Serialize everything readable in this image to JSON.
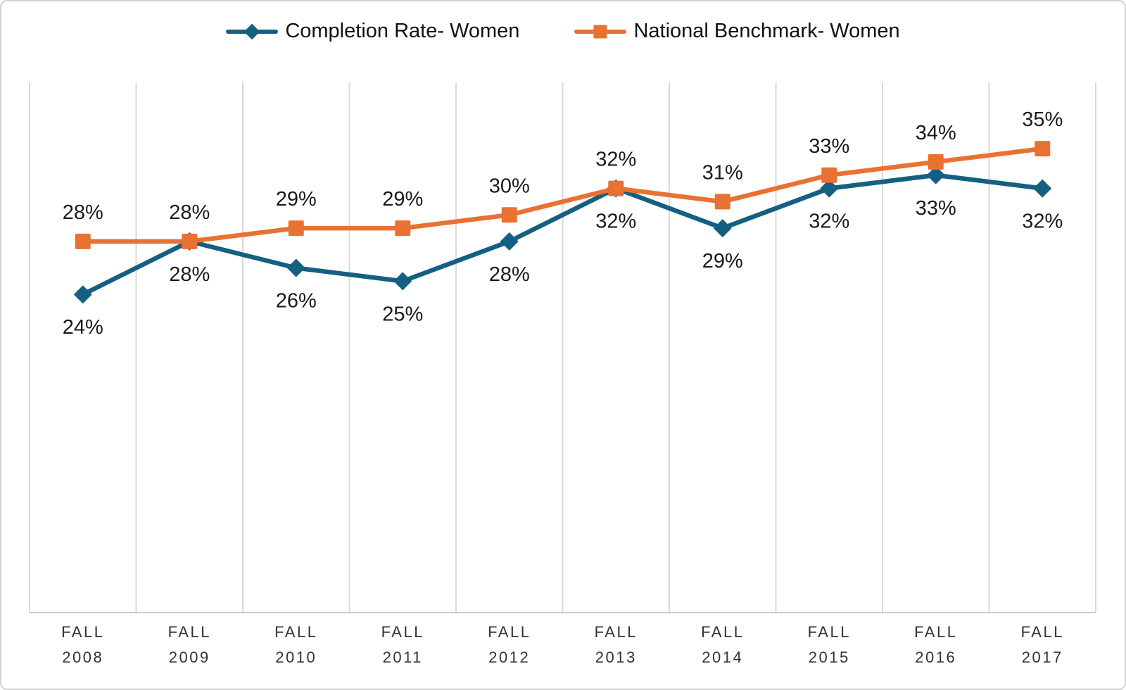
{
  "chart_data": {
    "type": "line",
    "title": "",
    "categories": [
      "FALL 2008",
      "FALL 2009",
      "FALL 2010",
      "FALL 2011",
      "FALL 2012",
      "FALL 2013",
      "FALL 2014",
      "FALL 2015",
      "FALL 2016",
      "FALL 2017"
    ],
    "series": [
      {
        "name": "Completion Rate- Women",
        "color": "#156082",
        "marker": "diamond",
        "label_position": "below",
        "values": [
          24,
          28,
          26,
          25,
          28,
          32,
          29,
          32,
          33,
          32
        ],
        "labels": [
          "24%",
          "28%",
          "26%",
          "25%",
          "28%",
          "32%",
          "29%",
          "32%",
          "33%",
          "32%"
        ]
      },
      {
        "name": "National Benchmark- Women",
        "color": "#E97132",
        "marker": "square",
        "label_position": "above",
        "values": [
          28,
          28,
          29,
          29,
          30,
          32,
          31,
          33,
          34,
          35
        ],
        "labels": [
          "28%",
          "28%",
          "29%",
          "29%",
          "30%",
          "32%",
          "31%",
          "33%",
          "34%",
          "35%"
        ]
      }
    ],
    "ylim": [
      0,
      40
    ],
    "value_suffix": "%",
    "grid": "vertical-only",
    "legend_position": "top",
    "data_labels": true,
    "gridline_color": "#D9D9D9",
    "axis_line_color": "#C9C9C9",
    "data_label_color": "#1A1A1A",
    "axis_label_color": "#333333",
    "background_color": "#FFFFFF"
  }
}
